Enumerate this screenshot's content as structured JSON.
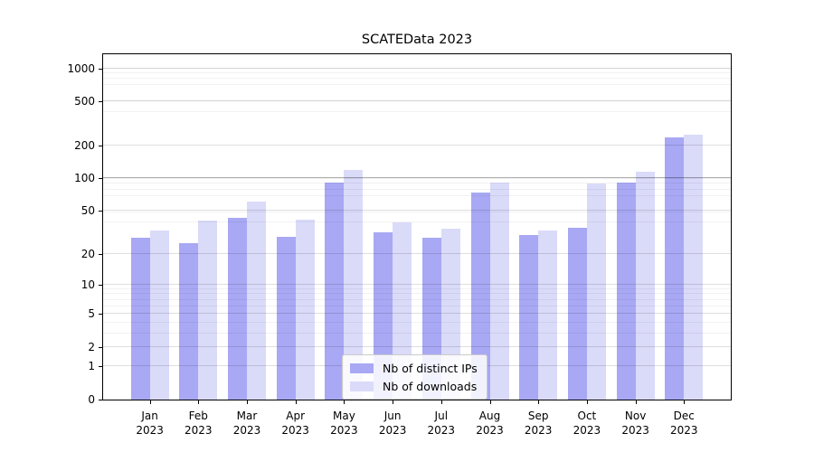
{
  "chart_data": {
    "type": "bar",
    "title": "SCATEData 2023",
    "yscale": "log(1+v)",
    "grid": true,
    "legend_position": "lower center",
    "yticks": [
      1000,
      500,
      200,
      100,
      50,
      20,
      10,
      5,
      2,
      1,
      0
    ],
    "categories": [
      "Jan 2023",
      "Feb 2023",
      "Mar 2023",
      "Apr 2023",
      "May 2023",
      "Jun 2023",
      "Jul 2023",
      "Aug 2023",
      "Sep 2023",
      "Oct 2023",
      "Nov 2023",
      "Dec 2023"
    ],
    "series": [
      {
        "name": "Nb of distinct IPs",
        "color": "#a8a8f4",
        "values": [
          28,
          25,
          43,
          29,
          92,
          32,
          28,
          74,
          30,
          35,
          91,
          235
        ]
      },
      {
        "name": "Nb of downloads",
        "color": "#dadaf9",
        "values": [
          33,
          41,
          61,
          42,
          118,
          39,
          34,
          91,
          33,
          90,
          115,
          250
        ]
      }
    ]
  },
  "colors": {
    "bar_distinct_ips": "#a8a8f4",
    "bar_downloads": "#dadaf9",
    "spine": "#000000",
    "gridline_emphasized": "#aaaaaa"
  }
}
